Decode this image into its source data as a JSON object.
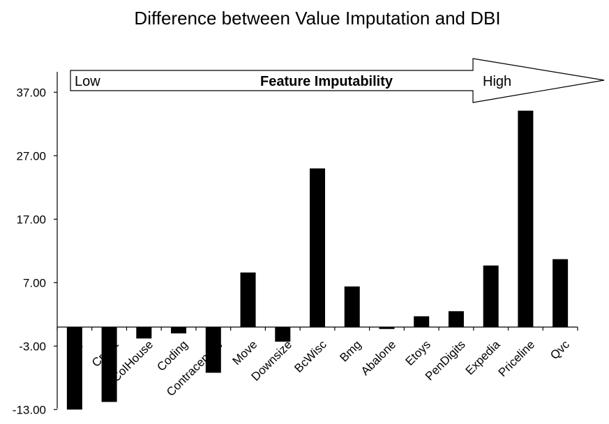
{
  "chart_data": {
    "type": "bar",
    "title": "Difference between Value Imputation and DBI",
    "xlabel": "",
    "ylabel": "",
    "ylim": [
      -13,
      40
    ],
    "yticks": [
      "37.00",
      "27.00",
      "17.00",
      "7.00",
      "-3.00",
      "-13.00"
    ],
    "ytick_values": [
      37,
      27,
      17,
      7,
      -3,
      -13
    ],
    "categories": [
      "Car",
      "Credit",
      "CoIHouse",
      "Coding",
      "Contraceptive",
      "Move",
      "Downsize",
      "BcWisc",
      "Bmg",
      "Abalone",
      "Etoys",
      "PenDigits",
      "Expedia",
      "Priceline",
      "Qvc"
    ],
    "values": [
      -13.0,
      -11.8,
      -1.8,
      -1.0,
      -7.2,
      8.6,
      -2.3,
      25.0,
      6.4,
      -0.3,
      1.7,
      2.5,
      9.7,
      34.1,
      10.7
    ],
    "bar_color": "#000000",
    "grid": false,
    "legend": "none",
    "annotation": {
      "low_label": "Low",
      "center_label": "Feature Imputability",
      "high_label": "High"
    }
  }
}
